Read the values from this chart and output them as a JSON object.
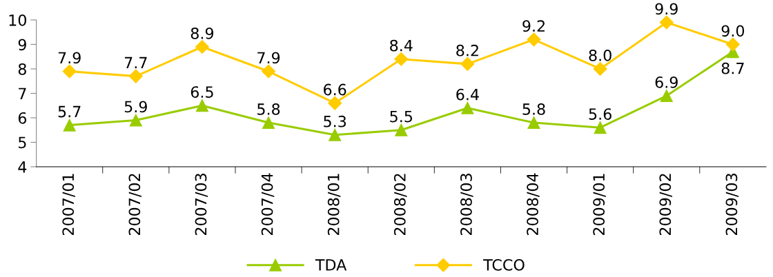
{
  "chart_data": {
    "type": "line",
    "categories": [
      "2007/01",
      "2007/02",
      "2007/03",
      "2007/04",
      "2008/01",
      "2008/02",
      "2008/03",
      "2008/04",
      "2009/01",
      "2009/02",
      "2009/03"
    ],
    "series": [
      {
        "name": "TDA",
        "color": "#99cc00",
        "marker": "triangle",
        "values": [
          5.7,
          5.9,
          6.5,
          5.8,
          5.3,
          5.5,
          6.4,
          5.8,
          5.6,
          6.9,
          8.7
        ],
        "value_labels": [
          "5.7",
          "5.9",
          "6.5",
          "5.8",
          "5.3",
          "5.5",
          "6.4",
          "5.8",
          "5.6",
          "6.9",
          "8.7"
        ]
      },
      {
        "name": "TCCO",
        "color": "#ffcc00",
        "marker": "diamond",
        "values": [
          7.9,
          7.7,
          8.9,
          7.9,
          6.6,
          8.4,
          8.2,
          9.2,
          8.0,
          9.9,
          9.0
        ],
        "value_labels": [
          "7.9",
          "7.7",
          "8.9",
          "7.9",
          "6.6",
          "8.4",
          "8.2",
          "9.2",
          "8.0",
          "9.9",
          "9.0"
        ]
      }
    ],
    "ylim": [
      4,
      10
    ],
    "yticks": [
      4,
      5,
      6,
      7,
      8,
      9,
      10
    ],
    "legend": "bottom",
    "line_style": "solid"
  }
}
